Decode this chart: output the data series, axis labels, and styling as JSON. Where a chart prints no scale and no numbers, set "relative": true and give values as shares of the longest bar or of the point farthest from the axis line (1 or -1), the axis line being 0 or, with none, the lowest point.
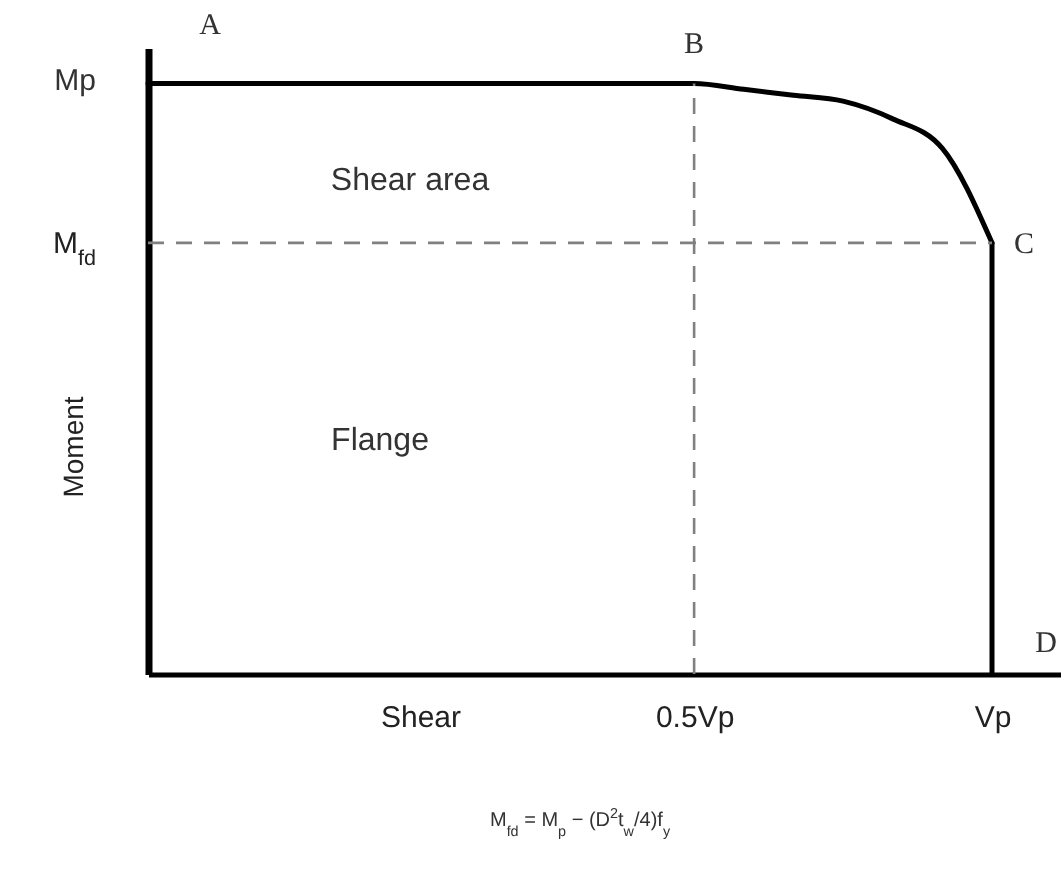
{
  "chart_data": {
    "type": "line",
    "xlabel": "Shear",
    "ylabel": "Moment",
    "relative": true,
    "categories": [
      null,
      null,
      null,
      null,
      null,
      null,
      null,
      null,
      null,
      null,
      null,
      "0.5Vp",
      null,
      null,
      null,
      null,
      null,
      "Vp"
    ],
    "series": [
      {
        "color": "#000000",
        "values": [
          1,
          1,
          1,
          1,
          1,
          1,
          1,
          1,
          1,
          1,
          1,
          1,
          0.99,
          0.98,
          0.97,
          0.94,
          0.89,
          0.73
        ]
      },
      {
        "color": "#000000",
        "x": [
          "Vp",
          "Vp"
        ],
        "values": [
          0.73,
          0
        ]
      }
    ],
    "ref_lines": [
      {
        "axis": "y",
        "value": 0.73,
        "label": "M$_{fd}$",
        "color": "#808080",
        "line_style": "dashed"
      },
      {
        "axis": "x",
        "value": "0.5Vp",
        "color": "#808080",
        "line_style": "dashed"
      }
    ],
    "annotations": [
      "A",
      {
        "text": "B",
        "x": "0.5Vp",
        "y": 1
      },
      {
        "text": "C",
        "x": "Vp",
        "y": 0.73
      },
      "D",
      "Mp",
      "Shear area",
      "Flange",
      "M$_{fd}$ = M$_{p}$ − (D$^{2}$t$_{w}$/4)f$_{y}$"
    ],
    "marker": "none",
    "line_style": "solid"
  }
}
